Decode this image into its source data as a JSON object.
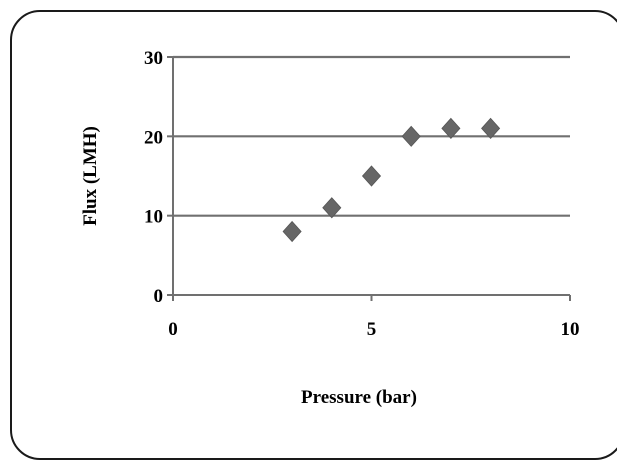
{
  "chart_data": {
    "type": "scatter",
    "title": "",
    "xlabel": "Pressure (bar)",
    "ylabel": "Flux (LMH)",
    "xlim": [
      0,
      10
    ],
    "ylim": [
      0,
      30
    ],
    "xticks": [
      0,
      5,
      10
    ],
    "yticks": [
      0,
      10,
      20,
      30
    ],
    "xtick_labels": [
      "0",
      "5",
      "10"
    ],
    "ytick_labels": [
      "0",
      "10",
      "20",
      "30"
    ],
    "grid": "horizontal",
    "legend": "none",
    "marker": "diamond",
    "marker_color": "#666666",
    "series": [
      {
        "x": [
          3,
          4,
          5,
          6,
          7,
          8
        ],
        "y": [
          8,
          11,
          15,
          20,
          21,
          21
        ]
      }
    ]
  }
}
